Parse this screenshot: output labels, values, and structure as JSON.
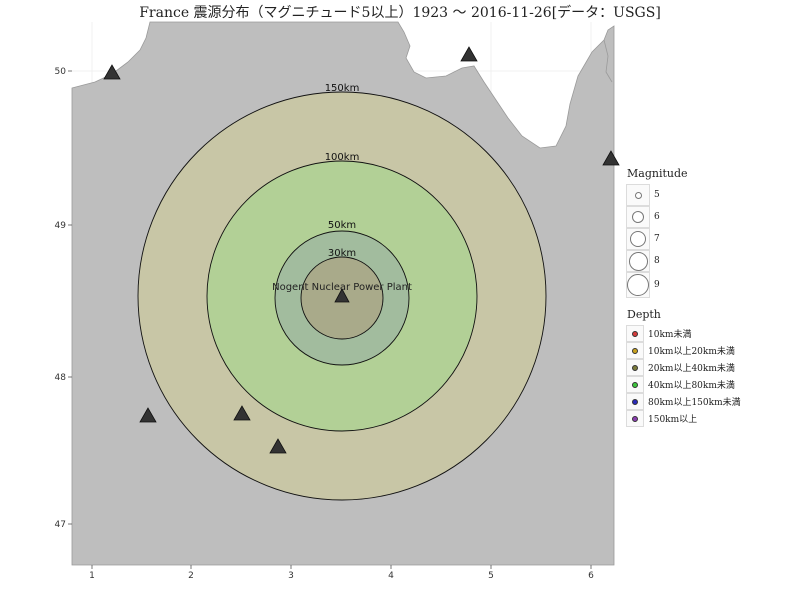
{
  "title": "France 震源分布（マグニチュード5以上）1923 ～ 2016-11-26[データ：USGS]",
  "map": {
    "x_ticks": [
      "1",
      "2",
      "3",
      "4",
      "5",
      "6"
    ],
    "y_ticks": [
      "50",
      "49",
      "48",
      "47"
    ],
    "plant_label": "Nogent Nuclear Power Plant",
    "rings": [
      {
        "label": "150km"
      },
      {
        "label": "100km"
      },
      {
        "label": "50km"
      },
      {
        "label": "30km"
      }
    ],
    "colors": {
      "sea": "#ffffff",
      "land": "#bebebe",
      "ring150": "#c8c6a6",
      "ring100": "#b2d096",
      "ring50": "#a2bc9e",
      "ring30": "#a9aa8a",
      "marker": "#333333"
    },
    "markers": [
      {
        "name": "plant-marker"
      },
      {
        "name": "marker-northwest"
      },
      {
        "name": "marker-north"
      },
      {
        "name": "marker-east-edge"
      },
      {
        "name": "marker-west"
      },
      {
        "name": "marker-south-1"
      },
      {
        "name": "marker-south-2"
      }
    ]
  },
  "legend": {
    "magnitude_title": "Magnitude",
    "magnitudes": [
      "5",
      "6",
      "7",
      "8",
      "9"
    ],
    "depth_title": "Depth",
    "depths": [
      {
        "label": "10km未満",
        "color": "#d33b3b"
      },
      {
        "label": "10km以上20km未満",
        "color": "#c8a11e"
      },
      {
        "label": "20km以上40km未満",
        "color": "#7a7a3a"
      },
      {
        "label": "40km以上80km未満",
        "color": "#3cc43c"
      },
      {
        "label": "80km以上150km未満",
        "color": "#2a2ab8"
      },
      {
        "label": "150km以上",
        "color": "#8a3db0"
      }
    ]
  }
}
